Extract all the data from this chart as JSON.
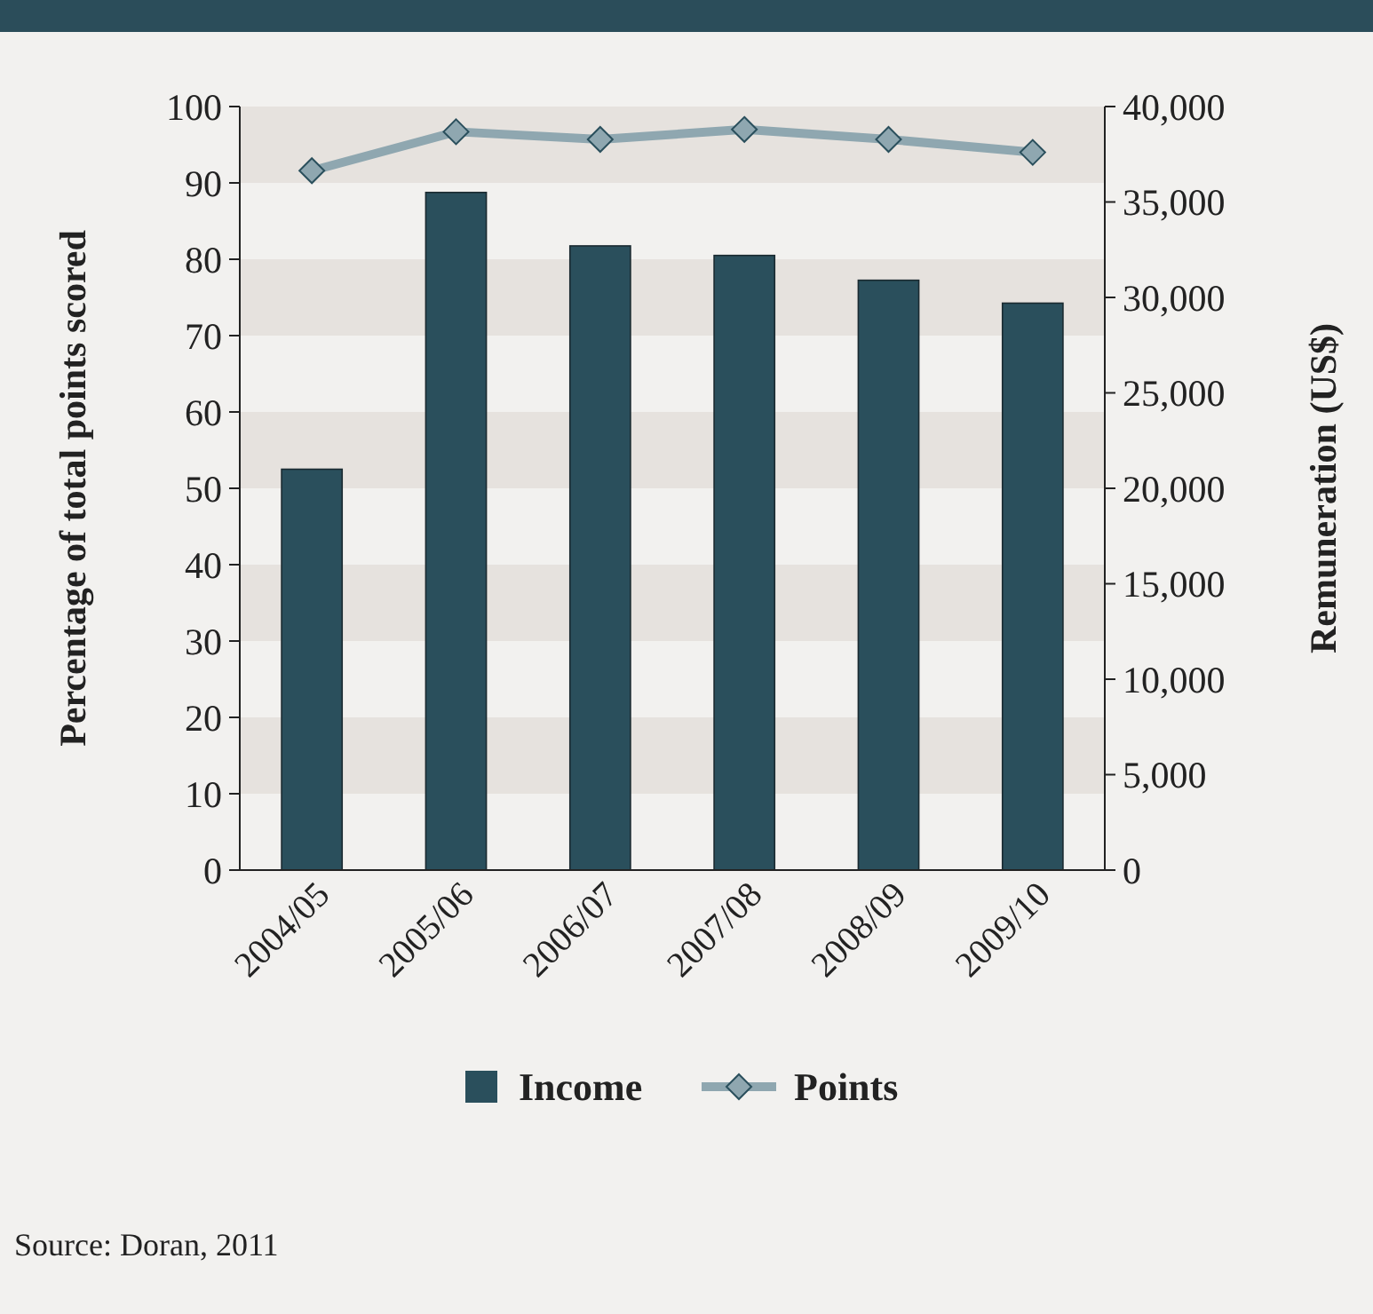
{
  "chart_data": {
    "type": "bar",
    "categories": [
      "2004/05",
      "2005/06",
      "2006/07",
      "2007/08",
      "2008/09",
      "2009/10"
    ],
    "series": [
      {
        "name": "Income",
        "axis": "y2",
        "color": "#2a4f5c",
        "values": [
          21000,
          35500,
          32700,
          32200,
          30900,
          29700
        ]
      },
      {
        "name": "Points",
        "type": "line",
        "axis": "y",
        "color": "#8fa7b0",
        "marker": "diamond",
        "values": [
          91.6,
          96.7,
          95.7,
          97.0,
          95.7,
          94.0
        ]
      }
    ],
    "ylabel": "Percentage of total points scored",
    "y2label": "Remuneration (US$)",
    "ylim": [
      0,
      100
    ],
    "yticks": [
      0,
      10,
      20,
      30,
      40,
      50,
      60,
      70,
      80,
      90,
      100
    ],
    "y2lim": [
      0,
      40000
    ],
    "y2ticks": [
      {
        "value": 0,
        "label": "0"
      },
      {
        "value": 5000,
        "label": "5,000"
      },
      {
        "value": 10000,
        "label": "10,000"
      },
      {
        "value": 15000,
        "label": "15,000"
      },
      {
        "value": 20000,
        "label": "20,000"
      },
      {
        "value": 25000,
        "label": "25,000"
      },
      {
        "value": 30000,
        "label": "30,000"
      },
      {
        "value": 35000,
        "label": "35,000"
      },
      {
        "value": 40000,
        "label": "40,000"
      }
    ],
    "bands": [
      {
        "axis": "y",
        "from": 10,
        "to": 20,
        "color": "#e6e2de"
      },
      {
        "axis": "y",
        "from": 30,
        "to": 40,
        "color": "#e6e2de"
      },
      {
        "axis": "y",
        "from": 50,
        "to": 60,
        "color": "#e6e2de"
      },
      {
        "axis": "y",
        "from": 70,
        "to": 80,
        "color": "#e6e2de"
      },
      {
        "axis": "y",
        "from": 90,
        "to": 100,
        "color": "#e6e2de"
      }
    ],
    "legend": "bottom",
    "annotations": [
      "Source: Doran, 2011"
    ]
  }
}
